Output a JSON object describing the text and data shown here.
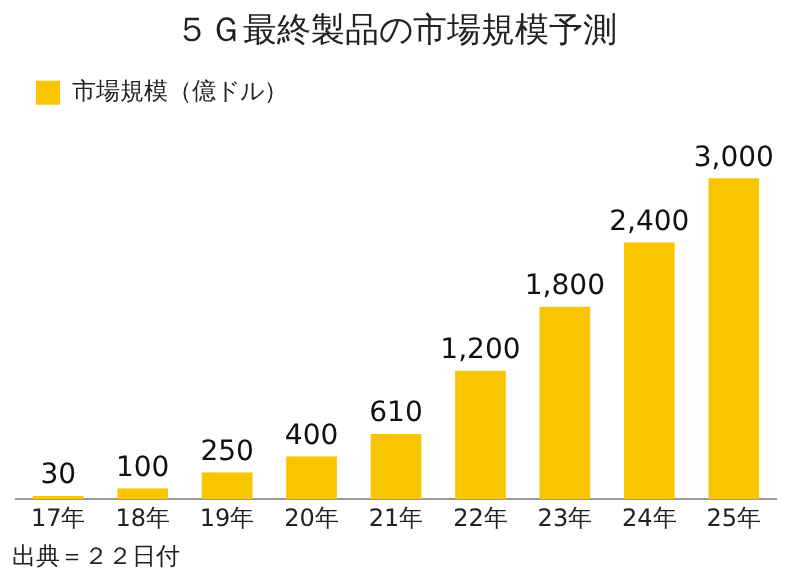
{
  "chart_data": {
    "type": "bar",
    "title": "５Ｇ最終製品の市場規模予測",
    "categories": [
      "17年",
      "18年",
      "19年",
      "20年",
      "21年",
      "22年",
      "23年",
      "24年",
      "25年"
    ],
    "series": [
      {
        "name": "市場規模（億ドル）",
        "color": "#f7c600",
        "values": [
          30,
          100,
          250,
          400,
          610,
          1200,
          1800,
          2400,
          3000
        ],
        "value_labels": [
          "30",
          "100",
          "250",
          "400",
          "610",
          "1,200",
          "1,800",
          "2,400",
          "3,000"
        ]
      }
    ],
    "legend": "top left",
    "grid": false,
    "annotations": [
      "出典＝２２日付"
    ]
  }
}
